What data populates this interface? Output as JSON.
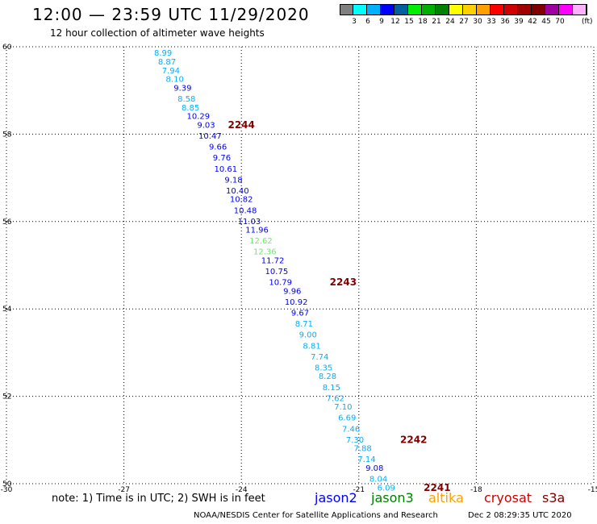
{
  "header": {
    "title": "12:00 — 23:59 UTC 11/29/2020",
    "subtitle": "12 hour collection of altimeter wave heights"
  },
  "legend": {
    "colors": [
      "#808080",
      "#00ffff",
      "#00b0ff",
      "#0000ff",
      "#0060a0",
      "#00ee00",
      "#00b000",
      "#008000",
      "#ffff00",
      "#ffd000",
      "#ffa000",
      "#ff0000",
      "#d00000",
      "#a00000",
      "#800000",
      "#a000a0",
      "#ff00ff",
      "#ffb0ff"
    ],
    "labels": [
      "3",
      "6",
      "9",
      "12",
      "15",
      "18",
      "21",
      "24",
      "27",
      "30",
      "33",
      "36",
      "39",
      "42",
      "45",
      "70"
    ],
    "unit": "(ft)"
  },
  "chart_data": {
    "type": "scatter",
    "title": "12 hour collection of altimeter wave heights",
    "xlabel": "",
    "ylabel": "",
    "xlim": [
      -30,
      -15
    ],
    "ylim": [
      50,
      60
    ],
    "x_ticks": [
      "-30",
      "-27",
      "-24",
      "-21",
      "-18",
      "-15"
    ],
    "y_ticks": [
      "50",
      "52",
      "54",
      "56",
      "58",
      "60"
    ],
    "grid": true,
    "series": [
      {
        "name": "jason2",
        "points": [
          {
            "lon": -26.0,
            "lat": 59.85,
            "v": "8.99",
            "c": "#00b0ff"
          },
          {
            "lon": -25.9,
            "lat": 59.65,
            "v": "8.87",
            "c": "#00b0ff"
          },
          {
            "lon": -25.8,
            "lat": 59.45,
            "v": "7.94",
            "c": "#00b0ff"
          },
          {
            "lon": -25.7,
            "lat": 59.25,
            "v": "8.10",
            "c": "#00b0ff"
          },
          {
            "lon": -25.5,
            "lat": 59.05,
            "v": "9.39",
            "c": "#0000ff"
          },
          {
            "lon": -25.4,
            "lat": 58.8,
            "v": "8.58",
            "c": "#00b0ff"
          },
          {
            "lon": -25.3,
            "lat": 58.6,
            "v": "8.85",
            "c": "#00b0ff"
          },
          {
            "lon": -25.1,
            "lat": 58.4,
            "v": "10.29",
            "c": "#0000ff"
          },
          {
            "lon": -24.9,
            "lat": 58.2,
            "v": "9.03",
            "c": "#0000ff"
          },
          {
            "lon": -24.8,
            "lat": 57.95,
            "v": "10.47",
            "c": "#0000ff"
          },
          {
            "lon": -24.6,
            "lat": 57.7,
            "v": "9.66",
            "c": "#0000ff"
          },
          {
            "lon": -24.5,
            "lat": 57.45,
            "v": "9.76",
            "c": "#0000ff"
          },
          {
            "lon": -24.4,
            "lat": 57.2,
            "v": "10.61",
            "c": "#0000ff"
          },
          {
            "lon": -24.2,
            "lat": 56.95,
            "v": "9.18",
            "c": "#0000ff"
          },
          {
            "lon": -24.1,
            "lat": 56.7,
            "v": "10.40",
            "c": "#0000ff"
          },
          {
            "lon": -24.0,
            "lat": 56.5,
            "v": "10.82",
            "c": "#0000ff"
          },
          {
            "lon": -23.9,
            "lat": 56.25,
            "v": "10.48",
            "c": "#0000ff"
          },
          {
            "lon": -23.8,
            "lat": 56.0,
            "v": "11.03",
            "c": "#0000ff"
          },
          {
            "lon": -23.6,
            "lat": 55.8,
            "v": "11.96",
            "c": "#0000ff"
          },
          {
            "lon": -23.5,
            "lat": 55.55,
            "v": "12.62",
            "c": "#66ee66"
          },
          {
            "lon": -23.4,
            "lat": 55.3,
            "v": "12.36",
            "c": "#66ee66"
          },
          {
            "lon": -23.2,
            "lat": 55.1,
            "v": "11.72",
            "c": "#0000ff"
          },
          {
            "lon": -23.1,
            "lat": 54.85,
            "v": "10.75",
            "c": "#0000ff"
          },
          {
            "lon": -23.0,
            "lat": 54.6,
            "v": "10.79",
            "c": "#0000ff"
          },
          {
            "lon": -22.7,
            "lat": 54.4,
            "v": "9.96",
            "c": "#0000ff"
          },
          {
            "lon": -22.6,
            "lat": 54.15,
            "v": "10.92",
            "c": "#0000ff"
          },
          {
            "lon": -22.5,
            "lat": 53.9,
            "v": "9.67",
            "c": "#0000ff"
          },
          {
            "lon": -22.4,
            "lat": 53.65,
            "v": "8.71",
            "c": "#00b0ff"
          },
          {
            "lon": -22.3,
            "lat": 53.4,
            "v": "9.00",
            "c": "#00b0ff"
          },
          {
            "lon": -22.2,
            "lat": 53.15,
            "v": "8.81",
            "c": "#00b0ff"
          },
          {
            "lon": -22.0,
            "lat": 52.9,
            "v": "7.74",
            "c": "#00b0ff"
          },
          {
            "lon": -21.9,
            "lat": 52.65,
            "v": "8.35",
            "c": "#00b0ff"
          },
          {
            "lon": -21.8,
            "lat": 52.45,
            "v": "8.28",
            "c": "#00b0ff"
          },
          {
            "lon": -21.7,
            "lat": 52.2,
            "v": "8.15",
            "c": "#00b0ff"
          },
          {
            "lon": -21.6,
            "lat": 51.95,
            "v": "7.62",
            "c": "#00b0ff"
          },
          {
            "lon": -21.4,
            "lat": 51.75,
            "v": "7.10",
            "c": "#00b0ff"
          },
          {
            "lon": -21.3,
            "lat": 51.5,
            "v": "6.69",
            "c": "#00b0ff"
          },
          {
            "lon": -21.2,
            "lat": 51.25,
            "v": "7.46",
            "c": "#00b0ff"
          },
          {
            "lon": -21.1,
            "lat": 51.0,
            "v": "7.30",
            "c": "#00b0ff"
          },
          {
            "lon": -20.9,
            "lat": 50.8,
            "v": "7.88",
            "c": "#00b0ff"
          },
          {
            "lon": -20.8,
            "lat": 50.55,
            "v": "7.14",
            "c": "#00b0ff"
          },
          {
            "lon": -20.6,
            "lat": 50.35,
            "v": "9.08",
            "c": "#0000ff"
          },
          {
            "lon": -20.5,
            "lat": 50.1,
            "v": "8.04",
            "c": "#00b0ff"
          },
          {
            "lon": -20.3,
            "lat": 49.9,
            "v": "6.09",
            "c": "#00b0ff"
          }
        ]
      }
    ],
    "time_marks": [
      {
        "lon": -24.0,
        "lat": 58.2,
        "label": "2244",
        "c": "#800000"
      },
      {
        "lon": -21.4,
        "lat": 54.6,
        "label": "2243",
        "c": "#800000"
      },
      {
        "lon": -19.6,
        "lat": 51.0,
        "label": "2242",
        "c": "#800000"
      },
      {
        "lon": -19.0,
        "lat": 49.9,
        "label": "2241",
        "c": "#800000"
      }
    ]
  },
  "footer": {
    "note": "note: 1) Time is in UTC; 2) SWH is in feet",
    "satellites": [
      {
        "label": "jason2",
        "color": "#0000ff"
      },
      {
        "label": "jason3",
        "color": "#008000"
      },
      {
        "label": "altika",
        "color": "#ffa000"
      },
      {
        "label": "cryosat",
        "color": "#d00000"
      },
      {
        "label": "s3a",
        "color": "#800000"
      }
    ],
    "credit": "NOAA/NESDIS Center for Satellite Applications and Research",
    "timestamp": "Dec  2 08:29:35 UTC 2020"
  }
}
